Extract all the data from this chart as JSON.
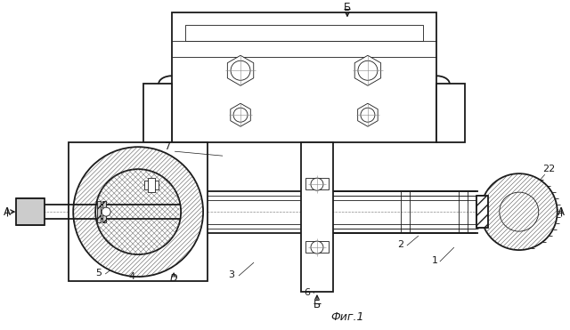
{
  "bg_color": "#ffffff",
  "line_color": "#1a1a1a",
  "figsize": [
    6.4,
    3.71
  ],
  "dpi": 100,
  "labels": {
    "fig": "Фиг.1",
    "B_top": "Б",
    "B_bot": "Б",
    "A_left": "А",
    "A_right": "А",
    "n1": "1",
    "n2": "2",
    "n3": "3",
    "n4": "4",
    "n5": "5",
    "n6": "6",
    "n7": "7",
    "n22": "22",
    "D": "D"
  }
}
